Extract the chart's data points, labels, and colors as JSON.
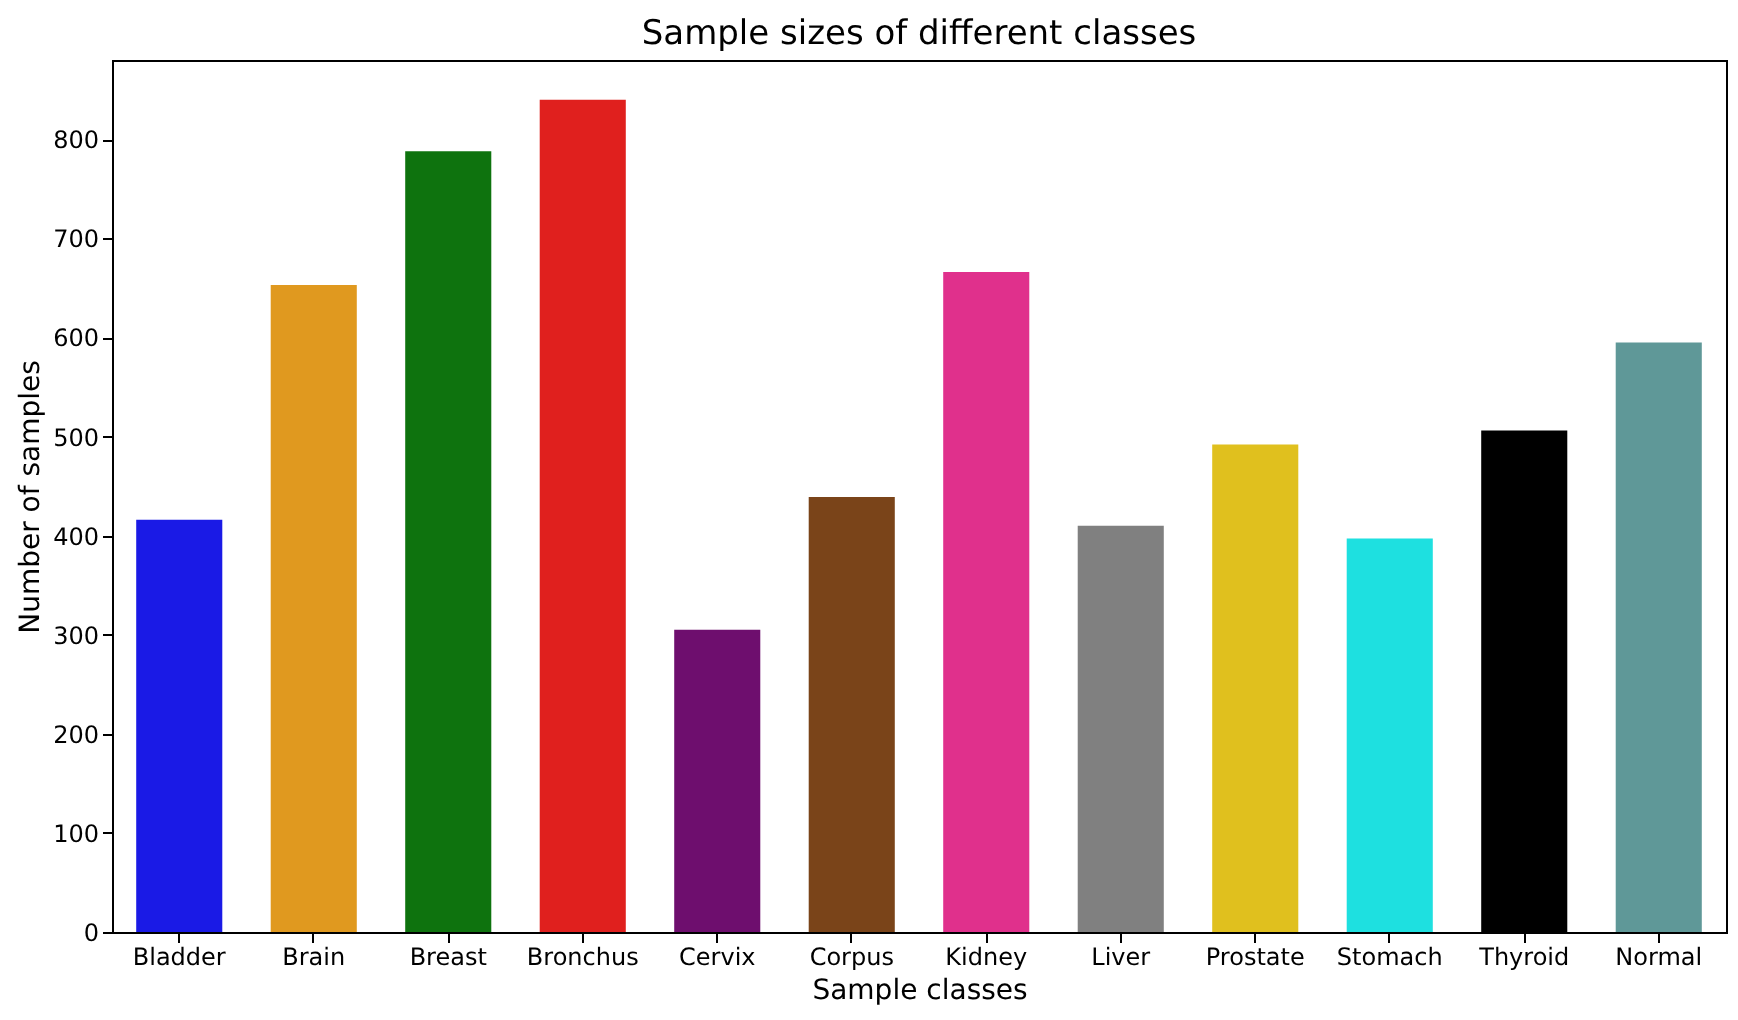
{
  "chart_data": {
    "type": "bar",
    "title": "Sample sizes of different classes",
    "xlabel": "Sample classes",
    "ylabel": "Number of samples",
    "categories": [
      "Bladder",
      "Brain",
      "Breast",
      "Bronchus",
      "Cervix",
      "Corpus",
      "Kidney",
      "Liver",
      "Prostate",
      "Stomach",
      "Thyroid",
      "Normal"
    ],
    "values": [
      416,
      653,
      788,
      840,
      305,
      439,
      666,
      410,
      492,
      397,
      506,
      595
    ],
    "colors": [
      "#1a1ae6",
      "#e0991f",
      "#0e730e",
      "#e0201e",
      "#6e0e6e",
      "#7a4419",
      "#e0308c",
      "#808080",
      "#e0c01e",
      "#1ee0e0",
      "#000000",
      "#5f9898"
    ],
    "ylim": [
      0,
      880
    ],
    "yticks": [
      0,
      100,
      200,
      300,
      400,
      500,
      600,
      700,
      800
    ],
    "grid": false
  }
}
